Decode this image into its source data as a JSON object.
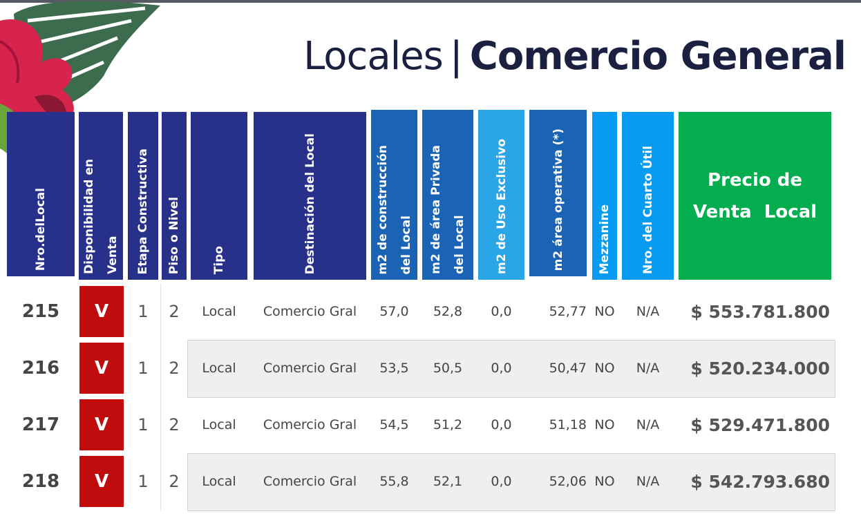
{
  "title": {
    "light": "Locales",
    "separator": "|",
    "bold": "Comercio General"
  },
  "headers": {
    "nro": "Nro.delLocal",
    "disponibilidad": "Disponibilidad en\nVenta",
    "etapa": "Etapa Constructiva",
    "piso": "Piso o Nivel",
    "tipo": "Tipo",
    "destinacion": "Destinación del Local",
    "m2_construccion": "m2 de construcción\ndel Local",
    "m2_privada": "m2 de área Privada\ndel Local",
    "m2_exclusivo": "m2 de Uso Exclusivo",
    "m2_operativa": "m2 área operativa (*)",
    "mezzanine": "Mezzanine",
    "cuarto_util": "Nro. del Cuarto Útil",
    "precio": "Precio de\nVenta  Local"
  },
  "colors": {
    "navy": "#283189",
    "blue": "#1a63b5",
    "sky": "#2aa6e6",
    "cyan": "#069af0",
    "green": "#04ad4e",
    "badge_red": "#c00c0c",
    "title": "#1b2040"
  },
  "rows": [
    {
      "nro": "215",
      "disp": "V",
      "etapa": "1",
      "piso": "2",
      "tipo": "Local",
      "destino": "Comercio Gral",
      "m2_construccion": "57,0",
      "m2_privada": "52,8",
      "m2_exclusivo": "0,0",
      "m2_operativa": "52,77",
      "mezzanine": "NO",
      "cuarto_util": "N/A",
      "precio": "$ 553.781.800"
    },
    {
      "nro": "216",
      "disp": "V",
      "etapa": "1",
      "piso": "2",
      "tipo": "Local",
      "destino": "Comercio Gral",
      "m2_construccion": "53,5",
      "m2_privada": "50,5",
      "m2_exclusivo": "0,0",
      "m2_operativa": "50,47",
      "mezzanine": "NO",
      "cuarto_util": "N/A",
      "precio": "$ 520.234.000"
    },
    {
      "nro": "217",
      "disp": "V",
      "etapa": "1",
      "piso": "2",
      "tipo": "Local",
      "destino": "Comercio Gral",
      "m2_construccion": "54,5",
      "m2_privada": "51,2",
      "m2_exclusivo": "0,0",
      "m2_operativa": "51,18",
      "mezzanine": "NO",
      "cuarto_util": "N/A",
      "precio": "$ 529.471.800"
    },
    {
      "nro": "218",
      "disp": "V",
      "etapa": "1",
      "piso": "2",
      "tipo": "Local",
      "destino": "Comercio Gral",
      "m2_construccion": "55,8",
      "m2_privada": "52,1",
      "m2_exclusivo": "0,0",
      "m2_operativa": "52,06",
      "mezzanine": "NO",
      "cuarto_util": "N/A",
      "precio": "$ 542.793.680"
    }
  ]
}
